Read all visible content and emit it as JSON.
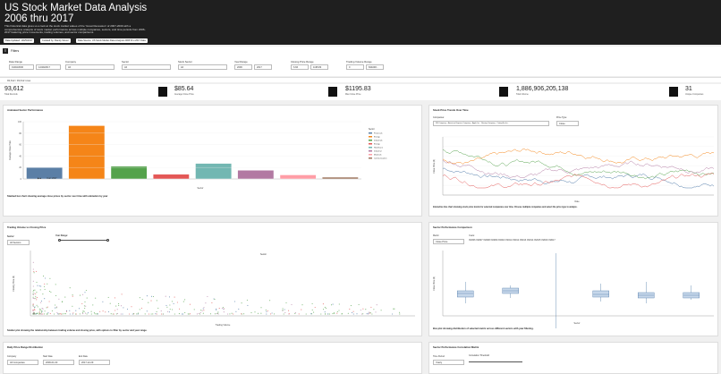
{
  "header": {
    "title": "US Stock Market Data Analysis 2006 thru 2017",
    "description": "This historical data gives us a look at the stock market values of the 'Great Recession' of 2007-2009 with a comprehensive analysis of stock market performance across multiple companies, sectors, and time periods from 2006-2017 featuring price movements, trading volumes, and sector comparisons."
  },
  "badges": {
    "updated": "Data Updated: 10/25/2017",
    "curated": "Curated by: Randy Stover",
    "source": "Data Source: US Stock Market Data Analysis 2006 thru 2017 data"
  },
  "filters": {
    "title": "Filters",
    "date_range_label": "Date Range",
    "date_start": "01/03/2006",
    "date_end": "12/29/2017",
    "company_label": "Company",
    "company_value": "All",
    "sector_label": "Sector",
    "sector_value": "All",
    "stock_sector_label": "Stock Sector",
    "stock_sector_value": "All",
    "year_range_label": "Year Range",
    "year_start": "2006",
    "year_end": "2017",
    "closing_label": "Closing Price Range",
    "closing_min": "6.66",
    "closing_max": "1195.83",
    "volume_label": "Trading Volume Range",
    "volume_min": "0",
    "volume_max": "843248..."
  },
  "meta": {
    "rows": "93,612 / 93,612 rows"
  },
  "kpis": [
    {
      "value": "93,612",
      "label": "Total Records"
    },
    {
      "value": "$85.64",
      "label": "Average Close Price"
    },
    {
      "value": "$1195.83",
      "label": "Max Close Price"
    },
    {
      "value": "1,886,906,205,138",
      "label": "Total Volume"
    },
    {
      "value": "31",
      "label": "Unique Companies"
    }
  ],
  "panels": {
    "animated": {
      "title": "Animated Sector Performance",
      "desc": "Stacked bar chart showing average close prices by sector over time with animation by year",
      "play": "Year: 2017",
      "xlabel": "Sector",
      "ylabel": "Average Close Price"
    },
    "trends": {
      "title": "Stock Price Trends Over Time",
      "companies_label": "Companies:",
      "price_type_label": "Price Type:",
      "price_type_value": "Close",
      "desc": "Interactive line chart showing stock price trends for selected companies over time. Choose multiple companies and select the price type to analyze.",
      "companies": [
        "3M Company",
        "American Express Company",
        "Apple Inc.",
        "Boeing Company",
        "Caterpillar Inc."
      ],
      "xlabel": "Date",
      "ylabel": "Close Price ($)"
    },
    "volume": {
      "title": "Trading Volume vs Closing Price",
      "sector_label": "Sector:",
      "sector_value": "All Sectors",
      "year_label": "Year Range:",
      "desc": "Scatter plot showing the relationship between trading volume and closing price, with options to filter by sector and year range.",
      "xlabel": "Trading Volume",
      "ylabel": "Closing Price ($)",
      "legend_title": "Sector"
    },
    "sector": {
      "title": "Sector Performance Comparison",
      "metric_label": "Metric:",
      "metric_value": "Close Price",
      "years_label": "Years:",
      "desc": "Box plot showing distribution of selected metric across different sectors with year filtering.",
      "xlabel": "Sector",
      "ylabel": "Close Price ($)"
    },
    "daily": {
      "title": "Daily Price Range Distribution",
      "company_label": "Company",
      "company_value": "All Companies",
      "start_label": "Start Date",
      "start_value": "2006-01-03",
      "end_label": "End Date",
      "end_value": "2017-12-29"
    },
    "corr": {
      "title": "Sector Performance Correlation Matrix",
      "period_label": "Time Period",
      "period_value": "Yearly",
      "threshold_label": "Correlation Threshold"
    }
  },
  "chart_data": [
    {
      "type": "bar",
      "title": "Animated Sector Performance",
      "xlabel": "Sector",
      "ylabel": "Average Close Price",
      "categories": [
        "Consumer Discretionary",
        "Energy",
        "Financials",
        "Healthcare",
        "Industrials",
        "Materials",
        "Technology",
        "Telecommunications"
      ],
      "values": [
        20,
        93,
        22,
        8,
        27,
        15,
        7,
        3
      ],
      "colors": [
        "#5b7fa6",
        "#f58518",
        "#54a24b",
        "#e45756",
        "#72b7b2",
        "#b279a2",
        "#ff9da6",
        "#9d755d"
      ],
      "ylim": [
        0,
        100
      ],
      "legend_items": [
        "Financials",
        "Energy",
        "Industrials",
        "Energy",
        "Healthcare",
        "Industrial",
        "Materials",
        "Communication"
      ]
    }
  ]
}
